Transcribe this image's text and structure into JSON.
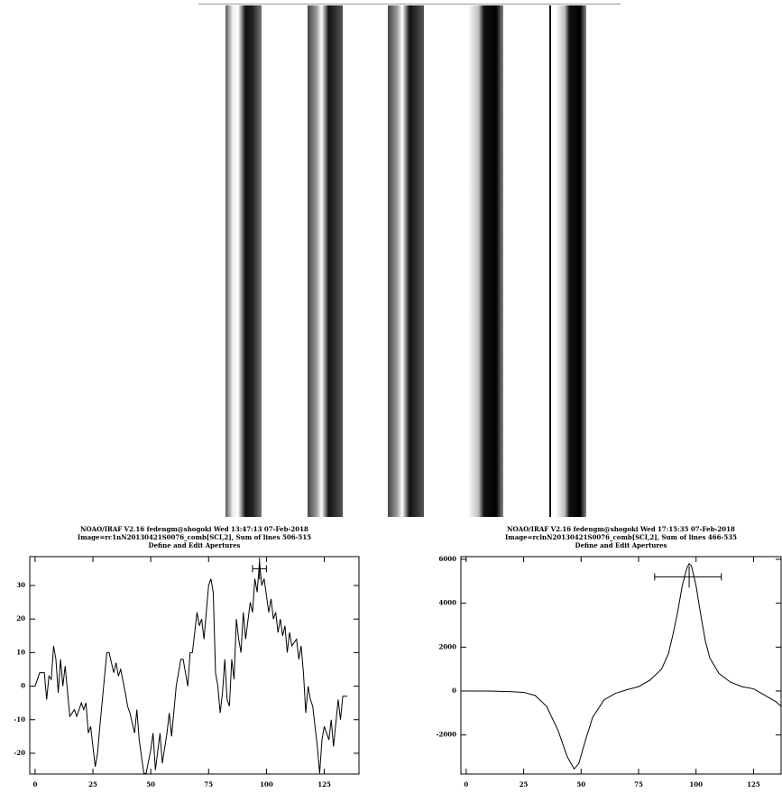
{
  "chart_data": [
    {
      "type": "line",
      "title": [
        "NOAO/IRAF V2.16 fedengm@shogoki Wed 13:47:13 07-Feb-2018",
        "Image=rc1nN20130421S0076_comb[SCI,2], Sum of lines 506-515",
        "Define and Edit Apertures"
      ],
      "x": [
        0,
        2,
        4,
        5,
        6,
        7,
        8,
        9,
        10,
        11,
        12,
        13,
        15,
        17,
        18,
        20,
        21,
        22,
        23,
        24,
        26,
        27,
        28,
        31,
        32,
        34,
        35,
        36,
        37,
        39,
        40,
        41,
        43,
        44,
        45,
        47,
        48,
        50,
        51,
        52,
        54,
        55,
        57,
        58,
        59,
        61,
        63,
        64,
        66,
        67,
        68,
        70,
        71,
        72,
        73,
        75,
        76,
        77,
        78,
        79,
        80,
        81,
        82,
        83,
        84,
        85,
        86,
        87,
        88,
        89,
        90,
        91,
        93,
        94,
        95,
        96,
        97,
        98,
        99,
        100,
        101,
        102,
        103,
        104,
        105,
        106,
        107,
        108,
        109,
        110,
        111,
        113,
        114,
        115,
        116,
        117,
        118,
        119,
        120,
        122,
        123,
        124,
        125,
        127,
        128,
        129,
        131,
        132,
        133,
        135
      ],
      "values": [
        0,
        4,
        4,
        -4,
        3,
        2,
        12,
        8,
        -2,
        8,
        0,
        6,
        -9,
        -7,
        -9,
        -5,
        -7,
        -5,
        -14,
        -12,
        -24,
        -20,
        -12,
        10,
        10,
        4,
        7,
        3,
        5,
        -2,
        -6,
        -8,
        -14,
        -7,
        -16,
        -26,
        -26,
        -19,
        -14,
        -25,
        -14,
        -23,
        -14,
        -8,
        -15,
        0,
        8,
        8,
        0,
        10,
        10,
        22,
        18,
        20,
        14,
        30,
        32,
        28,
        4,
        0,
        -8,
        -2,
        8,
        -4,
        -6,
        8,
        2,
        20,
        14,
        10,
        22,
        14,
        25,
        22,
        32,
        28,
        37,
        30,
        32,
        27,
        22,
        26,
        20,
        22,
        16,
        20,
        15,
        18,
        10,
        16,
        12,
        14,
        8,
        12,
        4,
        -8,
        0,
        -4,
        -6,
        -18,
        -26,
        -16,
        -12,
        -16,
        -10,
        -18,
        -4,
        -10,
        -3,
        -3
      ],
      "color": "#000000",
      "xlim": [
        -2.3,
        140
      ],
      "xticks": [
        0,
        25,
        50,
        75,
        100,
        125
      ],
      "ylim": [
        -26.2,
        38.6
      ],
      "yticks": [
        -20,
        -10,
        0,
        10,
        20,
        30
      ],
      "aperture": {
        "low": 94,
        "center": 97,
        "high": 100,
        "level": 35
      }
    },
    {
      "type": "line",
      "title": [
        "NOAO/IRAF V2.16 fedengm@shogoki Wed 17:15:35 07-Feb-2018",
        "Image=rclnN20130421S0076_comb[SCI,2], Sum of lines 466-535",
        "Define and Edit Apertures"
      ],
      "x": [
        0,
        10,
        20,
        25,
        30,
        35,
        40,
        44,
        47,
        49,
        52,
        55,
        60,
        65,
        70,
        75,
        80,
        85,
        88,
        90,
        92,
        94,
        96,
        97,
        98,
        100,
        102,
        104,
        106,
        110,
        115,
        120,
        125,
        130,
        135,
        137
      ],
      "values": [
        0,
        0,
        -30,
        -60,
        -200,
        -700,
        -1800,
        -3000,
        -3550,
        -3300,
        -2200,
        -1200,
        -400,
        -100,
        60,
        200,
        500,
        1000,
        1700,
        2600,
        3600,
        4800,
        5600,
        5800,
        5700,
        4800,
        3500,
        2300,
        1500,
        800,
        400,
        200,
        100,
        -200,
        -500,
        -700
      ],
      "color": "#000000",
      "xlim": [
        -2.3,
        137
      ],
      "xticks": [
        0,
        25,
        50,
        75,
        100,
        125
      ],
      "ylim": [
        -3780,
        6120
      ],
      "yticks": [
        -2000,
        0,
        2000,
        4000,
        6000
      ],
      "aperture": {
        "low": 82,
        "center": 97,
        "high": 111,
        "level": 5200
      }
    }
  ]
}
